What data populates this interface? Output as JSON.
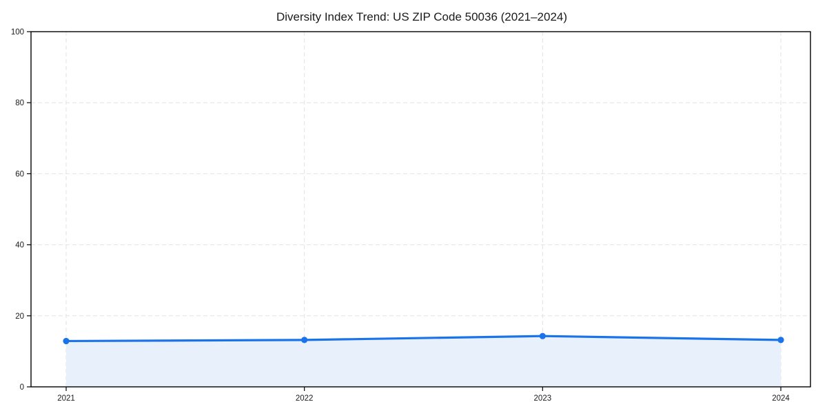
{
  "chart_data": {
    "type": "area",
    "title": "Diversity Index Trend: US ZIP Code 50036 (2021–2024)",
    "categories": [
      "2021",
      "2022",
      "2023",
      "2024"
    ],
    "values": [
      12.9,
      13.2,
      14.3,
      13.2
    ],
    "xlabel": "",
    "ylabel": "",
    "ylim": [
      0,
      100
    ],
    "yticks": [
      0,
      20,
      40,
      60,
      80,
      100
    ],
    "grid": "dashed-both-axes",
    "legend": "none",
    "colors": {
      "line": "#1a73e8",
      "marker": "#1a73e8",
      "fill": "#e8f0fc",
      "axis": "#000000",
      "grid": "#e2e2e2",
      "text": "#1a1a1a",
      "background": "#ffffff"
    }
  }
}
